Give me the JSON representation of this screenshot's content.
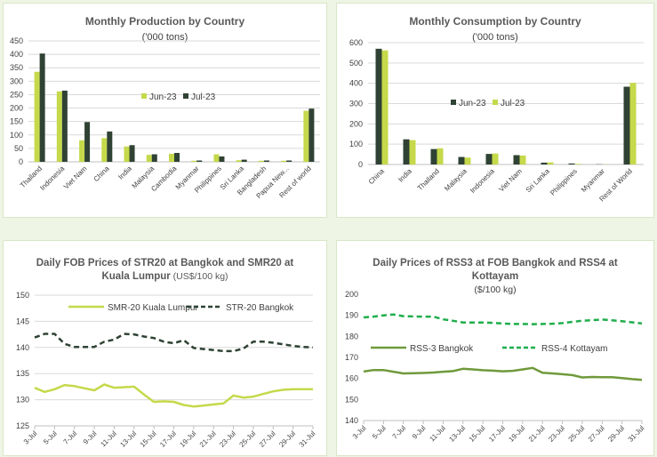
{
  "colors": {
    "light": "#c5d94a",
    "dark": "#2f4234",
    "green_mid": "#6f9a3b",
    "green_dash": "#1fae4b",
    "grid": "#d9d9d9",
    "text": "#404040",
    "title": "#595959"
  },
  "chart_data": [
    {
      "type": "bar",
      "title": "Monthly Production by Country",
      "subtitle": "('000 tons)",
      "categories": [
        "Thailand",
        "Indonesia",
        "Viet Nam",
        "China",
        "India",
        "Malaysia",
        "Cambodia",
        "Myanmar",
        "Philippines",
        "Sri Lanka",
        "Bangladesh",
        "Papua New...",
        "Rest of world"
      ],
      "series": [
        {
          "name": "Jun-23",
          "color": "#c5d94a",
          "values": [
            335,
            262,
            80,
            88,
            57,
            26,
            30,
            4,
            28,
            6,
            4,
            4,
            190
          ]
        },
        {
          "name": "Jul-23",
          "color": "#2f4234",
          "values": [
            403,
            265,
            148,
            113,
            62,
            28,
            33,
            5,
            20,
            8,
            5,
            5,
            198
          ]
        }
      ],
      "yticks": [
        0,
        50,
        100,
        150,
        200,
        250,
        300,
        350,
        400,
        450
      ],
      "ylim": [
        0,
        450
      ],
      "legend": "center-right"
    },
    {
      "type": "bar",
      "title": "Monthly Consumption by Country",
      "subtitle": "('000 tons)",
      "categories": [
        "China",
        "India",
        "Thailand",
        "Malaysia",
        "Indonesia",
        "Viet Nam",
        "Sri Lanka",
        "Philippines",
        "Myanmar",
        "Rest of World"
      ],
      "series": [
        {
          "name": "Jun-23",
          "color": "#2f4234",
          "values": [
            570,
            124,
            76,
            37,
            52,
            46,
            9,
            5,
            1,
            383
          ]
        },
        {
          "name": "Jul-23",
          "color": "#c5d94a",
          "values": [
            562,
            120,
            80,
            34,
            54,
            44,
            10,
            3,
            1,
            402
          ]
        }
      ],
      "yticks": [
        0,
        100,
        200,
        300,
        400,
        500,
        600
      ],
      "ylim": [
        0,
        600
      ],
      "legend": "center-right"
    },
    {
      "type": "line",
      "title_line1": "Daily FOB Prices of STR20 at Bangkok and SMR20 at",
      "title_line2": "Kuala Lumpur",
      "subtitle": "(US$/100 kg)",
      "x": [
        "3-Jul",
        "4-Jul",
        "5-Jul",
        "6-Jul",
        "7-Jul",
        "8-Jul",
        "9-Jul",
        "10-Jul",
        "11-Jul",
        "12-Jul",
        "13-Jul",
        "14-Jul",
        "15-Jul",
        "16-Jul",
        "17-Jul",
        "18-Jul",
        "19-Jul",
        "20-Jul",
        "21-Jul",
        "22-Jul",
        "23-Jul",
        "24-Jul",
        "25-Jul",
        "26-Jul",
        "27-Jul",
        "28-Jul",
        "29-Jul",
        "30-Jul",
        "31-Jul"
      ],
      "xticks": [
        "3-Jul",
        "5-Jul",
        "7-Jul",
        "9-Jul",
        "11-Jul",
        "13-Jul",
        "15-Jul",
        "17-Jul",
        "19-Jul",
        "21-Jul",
        "23-Jul",
        "25-Jul",
        "27-Jul",
        "29-Jul",
        "31-Jul"
      ],
      "series": [
        {
          "name": "SMR-20 Kuala Lumpur",
          "color": "#c5d94a",
          "dash": false,
          "values": [
            132.3,
            131.5,
            132.0,
            132.8,
            132.6,
            132.2,
            131.8,
            132.9,
            132.3,
            132.4,
            132.5,
            131.0,
            129.6,
            129.7,
            129.6,
            129.0,
            128.7,
            128.9,
            129.1,
            129.3,
            130.8,
            130.4,
            130.6,
            131.1,
            131.6,
            131.9,
            132.0,
            132.0,
            132.0
          ]
        },
        {
          "name": "STR-20 Bangkok",
          "color": "#2f4234",
          "dash": true,
          "values": [
            141.9,
            142.6,
            142.6,
            140.7,
            140.1,
            140.1,
            140.1,
            141.1,
            141.5,
            142.6,
            142.5,
            142.1,
            141.8,
            141.1,
            140.8,
            141.4,
            139.9,
            139.7,
            139.5,
            139.3,
            139.3,
            139.8,
            141.1,
            141.1,
            140.9,
            140.6,
            140.3,
            140.1,
            140.0
          ]
        }
      ],
      "yticks": [
        125,
        130,
        135,
        140,
        145,
        150
      ],
      "ylim": [
        125,
        150
      ],
      "legend": "top"
    },
    {
      "type": "line",
      "title_line1": "Daily Prices of RSS3 at FOB Bangkok and RSS4 at",
      "title_line2": "Kottayam",
      "subtitle": "($/100 kg)",
      "x": [
        "3-Jul",
        "4-Jul",
        "5-Jul",
        "6-Jul",
        "7-Jul",
        "8-Jul",
        "9-Jul",
        "10-Jul",
        "11-Jul",
        "12-Jul",
        "13-Jul",
        "14-Jul",
        "15-Jul",
        "16-Jul",
        "17-Jul",
        "18-Jul",
        "19-Jul",
        "20-Jul",
        "21-Jul",
        "22-Jul",
        "23-Jul",
        "24-Jul",
        "25-Jul",
        "26-Jul",
        "27-Jul",
        "28-Jul",
        "29-Jul",
        "30-Jul",
        "31-Jul"
      ],
      "xticks": [
        "3-Jul",
        "5-Jul",
        "7-Jul",
        "9-Jul",
        "11-Jul",
        "13-Jul",
        "15-Jul",
        "17-Jul",
        "19-Jul",
        "21-Jul",
        "23-Jul",
        "25-Jul",
        "27-Jul",
        "29-Jul",
        "31-Jul"
      ],
      "series": [
        {
          "name": "RSS-3 Bangkok",
          "color": "#6f9a3b",
          "dash": false,
          "values": [
            163.3,
            164.0,
            164.0,
            163.2,
            162.4,
            162.5,
            162.6,
            162.8,
            163.2,
            163.5,
            164.6,
            164.3,
            163.9,
            163.7,
            163.4,
            163.6,
            164.3,
            165.0,
            162.7,
            162.4,
            162.0,
            161.6,
            160.5,
            160.7,
            160.6,
            160.6,
            160.2,
            159.7,
            159.3
          ]
        },
        {
          "name": "RSS-4 Kottayam",
          "color": "#1fae4b",
          "dash": true,
          "values": [
            189.0,
            189.4,
            190.0,
            190.4,
            189.6,
            189.5,
            189.4,
            189.4,
            188.1,
            187.4,
            186.6,
            186.6,
            186.6,
            186.4,
            186.1,
            185.9,
            185.9,
            185.8,
            185.9,
            186.0,
            186.3,
            186.9,
            187.4,
            187.7,
            188.0,
            187.6,
            187.2,
            186.7,
            186.2
          ]
        }
      ],
      "yticks": [
        140,
        150,
        160,
        170,
        180,
        190,
        200
      ],
      "ylim": [
        140,
        200
      ],
      "legend": "center"
    }
  ]
}
